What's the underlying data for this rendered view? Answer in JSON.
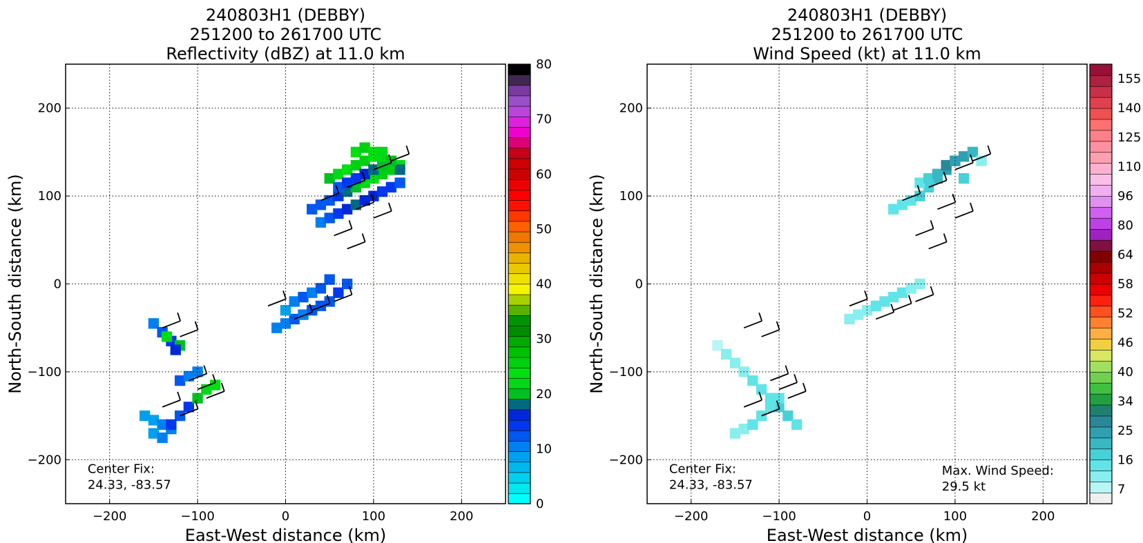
{
  "chart_data": [
    {
      "type": "heatmap",
      "title": "240803H1 (DEBBY)\n251200 to 261700 UTC\nReflectivity (dBZ) at 11.0 km",
      "title_lines": [
        "240803H1 (DEBBY)",
        "251200 to 261700 UTC",
        "Reflectivity (dBZ) at 11.0 km"
      ],
      "xlabel": "East-West distance (km)",
      "ylabel": "North-South distance (km)",
      "xlim": [
        -250,
        250
      ],
      "ylim": [
        -250,
        250
      ],
      "xticks": [
        -200,
        -100,
        0,
        100,
        200
      ],
      "yticks": [
        -200,
        -100,
        0,
        100,
        200
      ],
      "grid": true,
      "annotations": [
        {
          "text": "Center Fix:",
          "x": -225,
          "y": -215
        },
        {
          "text": "24.33, -83.57",
          "x": -225,
          "y": -233
        }
      ],
      "colorbar": {
        "min": 0,
        "max": 80,
        "ticks": [
          0,
          10,
          20,
          30,
          40,
          50,
          60,
          70,
          80
        ],
        "colors": [
          "#00ffff",
          "#00e8ee",
          "#00d0ee",
          "#00b8ee",
          "#00a0f0",
          "#0080f0",
          "#0058f0",
          "#0038ef",
          "#0028d8",
          "#006a80",
          "#00c020",
          "#00d818",
          "#00e010",
          "#00d010",
          "#00c000",
          "#00aa00",
          "#008c00",
          "#009400",
          "#58b000",
          "#a8d000",
          "#f5f500",
          "#f0e000",
          "#e8c800",
          "#e8b400",
          "#f09000",
          "#f07800",
          "#ff6000",
          "#ff3800",
          "#ff1000",
          "#ff0000",
          "#ee0000",
          "#cc0000",
          "#cc0000",
          "#c80018",
          "#dd0077",
          "#ee00cc",
          "#dd22dd",
          "#bb44dd",
          "#9950c8",
          "#7a3aa0",
          "#402850",
          "#000000"
        ]
      },
      "series": [
        {
          "cluster": "NE band",
          "x": [
            30,
            40,
            50,
            60,
            70,
            80,
            90,
            100,
            110,
            120,
            130,
            40,
            50,
            60,
            70,
            80,
            90,
            100,
            110,
            120,
            130,
            50,
            60,
            70,
            80,
            90,
            100,
            110,
            120,
            130,
            60,
            70,
            80,
            90,
            100,
            110,
            120,
            80,
            90,
            100,
            110,
            120
          ],
          "y": [
            85,
            90,
            95,
            100,
            105,
            110,
            115,
            120,
            125,
            130,
            135,
            70,
            75,
            80,
            85,
            90,
            95,
            100,
            105,
            110,
            115,
            120,
            125,
            130,
            135,
            140,
            145,
            150,
            140,
            130,
            110,
            115,
            120,
            125,
            130,
            135,
            140,
            150,
            155,
            150,
            145,
            140
          ],
          "value": [
            12,
            12,
            13,
            15,
            18,
            20,
            22,
            24,
            26,
            25,
            24,
            11,
            12,
            14,
            16,
            18,
            17,
            16,
            15,
            14,
            13,
            20,
            22,
            24,
            26,
            25,
            24,
            22,
            20,
            18,
            13,
            14,
            15,
            16,
            18,
            20,
            22,
            24,
            26,
            24,
            22,
            20
          ]
        },
        {
          "cluster": "central",
          "x": [
            -10,
            0,
            10,
            20,
            30,
            40,
            50,
            60,
            70,
            0,
            10,
            20,
            30,
            40,
            50
          ],
          "y": [
            -50,
            -45,
            -40,
            -35,
            -30,
            -25,
            -20,
            -10,
            0,
            -30,
            -20,
            -15,
            -10,
            -5,
            5
          ],
          "value": [
            10,
            11,
            12,
            11,
            12,
            12,
            13,
            14,
            12,
            9,
            10,
            12,
            11,
            12,
            13
          ]
        },
        {
          "cluster": "SW small",
          "x": [
            -150,
            -140,
            -130,
            -120,
            -135,
            -125
          ],
          "y": [
            -45,
            -55,
            -65,
            -70,
            -60,
            -75
          ],
          "value": [
            10,
            12,
            14,
            20,
            22,
            16
          ]
        },
        {
          "cluster": "SW large",
          "x": [
            -160,
            -150,
            -140,
            -130,
            -120,
            -110,
            -100,
            -90,
            -80,
            -120,
            -110,
            -100,
            -150,
            -140,
            -130
          ],
          "y": [
            -150,
            -155,
            -160,
            -165,
            -150,
            -140,
            -130,
            -120,
            -115,
            -110,
            -105,
            -100,
            -170,
            -175,
            -160
          ],
          "value": [
            8,
            9,
            10,
            11,
            12,
            14,
            20,
            22,
            24,
            12,
            11,
            10,
            9,
            10,
            14
          ]
        }
      ],
      "vectors_present": true
    },
    {
      "type": "heatmap",
      "title": "240803H1 (DEBBY)\n251200 to 261700 UTC\nWind Speed (kt) at 11.0 km",
      "title_lines": [
        "240803H1 (DEBBY)",
        "251200 to 261700 UTC",
        "Wind Speed (kt) at 11.0 km"
      ],
      "xlabel": "East-West distance (km)",
      "ylabel": "North-South distance (km)",
      "xlim": [
        -250,
        250
      ],
      "ylim": [
        -250,
        250
      ],
      "xticks": [
        -200,
        -100,
        0,
        100,
        200
      ],
      "yticks": [
        -200,
        -100,
        0,
        100,
        200
      ],
      "grid": true,
      "annotations": [
        {
          "text": "Center Fix:",
          "x": -225,
          "y": -215
        },
        {
          "text": "24.33, -83.57",
          "x": -225,
          "y": -233
        },
        {
          "text": "Max. Wind Speed:",
          "x": 85,
          "y": -217
        },
        {
          "text": "29.5 kt",
          "x": 85,
          "y": -235
        }
      ],
      "colorbar": {
        "min": 0,
        "max": 160,
        "tick_labels": [
          "7",
          "16",
          "25",
          "34",
          "40",
          "46",
          "52",
          "58",
          "64",
          "80",
          "96",
          "110",
          "125",
          "140",
          "155"
        ],
        "colors": [
          "#f0f0f0",
          "#b8f5f5",
          "#88eeee",
          "#60e4e8",
          "#48d0d8",
          "#38b8c4",
          "#30a0b0",
          "#288898",
          "#208070",
          "#20a040",
          "#40c040",
          "#70d050",
          "#a0e060",
          "#d8e860",
          "#f0d040",
          "#ffb040",
          "#ff8030",
          "#ff5020",
          "#ff2010",
          "#ee0000",
          "#cc0000",
          "#aa0000",
          "#800000",
          "#801040",
          "#a020c0",
          "#c040e8",
          "#d060f0",
          "#e090f0",
          "#f0b0f0",
          "#f8c0e8",
          "#ffb0d0",
          "#ffa0b0",
          "#ff90a0",
          "#ff8088",
          "#ff7070",
          "#f05050",
          "#e04050",
          "#c83048",
          "#b02040",
          "#981038"
        ]
      },
      "series": [
        {
          "cluster": "NE band",
          "x": [
            30,
            40,
            50,
            60,
            70,
            80,
            90,
            100,
            110,
            120,
            130,
            60,
            70,
            80,
            90,
            100,
            110
          ],
          "y": [
            85,
            90,
            95,
            100,
            110,
            120,
            130,
            140,
            145,
            150,
            140,
            115,
            120,
            125,
            135,
            140,
            120
          ],
          "value": [
            12,
            14,
            15,
            16,
            18,
            20,
            24,
            28,
            26,
            22,
            10,
            15,
            17,
            20,
            29.5,
            25,
            18
          ]
        },
        {
          "cluster": "central",
          "x": [
            -20,
            -10,
            0,
            10,
            20,
            30,
            40,
            50,
            60
          ],
          "y": [
            -40,
            -35,
            -30,
            -25,
            -20,
            -15,
            -10,
            -5,
            0
          ],
          "value": [
            8,
            9,
            10,
            12,
            14,
            13,
            12,
            11,
            10
          ]
        },
        {
          "cluster": "SW",
          "x": [
            -170,
            -160,
            -150,
            -140,
            -130,
            -120,
            -110,
            -100,
            -90,
            -80,
            -150,
            -140,
            -130,
            -120,
            -110,
            -100
          ],
          "y": [
            -70,
            -80,
            -90,
            -100,
            -110,
            -120,
            -130,
            -140,
            -150,
            -160,
            -170,
            -165,
            -160,
            -150,
            -140,
            -130
          ],
          "value": [
            7,
            8,
            9,
            10,
            12,
            13,
            14,
            16,
            18,
            15,
            10,
            11,
            12,
            13,
            14,
            12
          ]
        }
      ],
      "vectors_present": true
    }
  ]
}
